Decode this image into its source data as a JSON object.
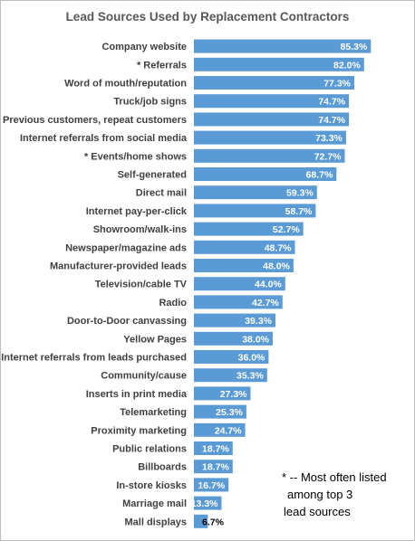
{
  "chart_data": {
    "type": "bar",
    "orientation": "horizontal",
    "title": "Lead Sources Used by Replacement Contractors",
    "categories": [
      "Company website",
      "* Referrals",
      "Word of mouth/reputation",
      "Truck/job signs",
      "* Previous customers, repeat customers",
      "Internet referrals from social media",
      "* Events/home shows",
      "Self-generated",
      "Direct mail",
      "Internet pay-per-click",
      "Showroom/walk-ins",
      "Newspaper/magazine ads",
      "Manufacturer-provided  leads",
      "Television/cable TV",
      "Radio",
      "Door-to-Door canvassing",
      "Yellow Pages",
      "Internet referrals from leads purchased",
      "Community/cause",
      "Inserts in print media",
      "Telemarketing",
      "Proximity marketing",
      "Public relations",
      "Billboards",
      "In-store kiosks",
      "Marriage mail",
      "Mall displays"
    ],
    "values": [
      85.3,
      82.0,
      77.3,
      74.7,
      74.7,
      73.3,
      72.7,
      68.7,
      59.3,
      58.7,
      52.7,
      48.7,
      48.0,
      44.0,
      42.7,
      39.3,
      38.0,
      36.0,
      35.3,
      27.3,
      25.3,
      24.7,
      18.7,
      18.7,
      16.7,
      13.3,
      6.7
    ],
    "value_labels": [
      "85.3%",
      "82.0%",
      "77.3%",
      "74.7%",
      "74.7%",
      "73.3%",
      "72.7%",
      "68.7%",
      "59.3%",
      "58.7%",
      "52.7%",
      "48.7%",
      "48.0%",
      "44.0%",
      "42.7%",
      "39.3%",
      "38.0%",
      "36.0%",
      "35.3%",
      "27.3%",
      "25.3%",
      "24.7%",
      "18.7%",
      "18.7%",
      "16.7%",
      "13.3%",
      "6.7%"
    ],
    "xlim": [
      0,
      100
    ],
    "grid": false,
    "legend": "none",
    "bar_color": "#5b9bd5",
    "note_lines": [
      "* -- Most often listed",
      " among top 3",
      "lead sources"
    ]
  }
}
